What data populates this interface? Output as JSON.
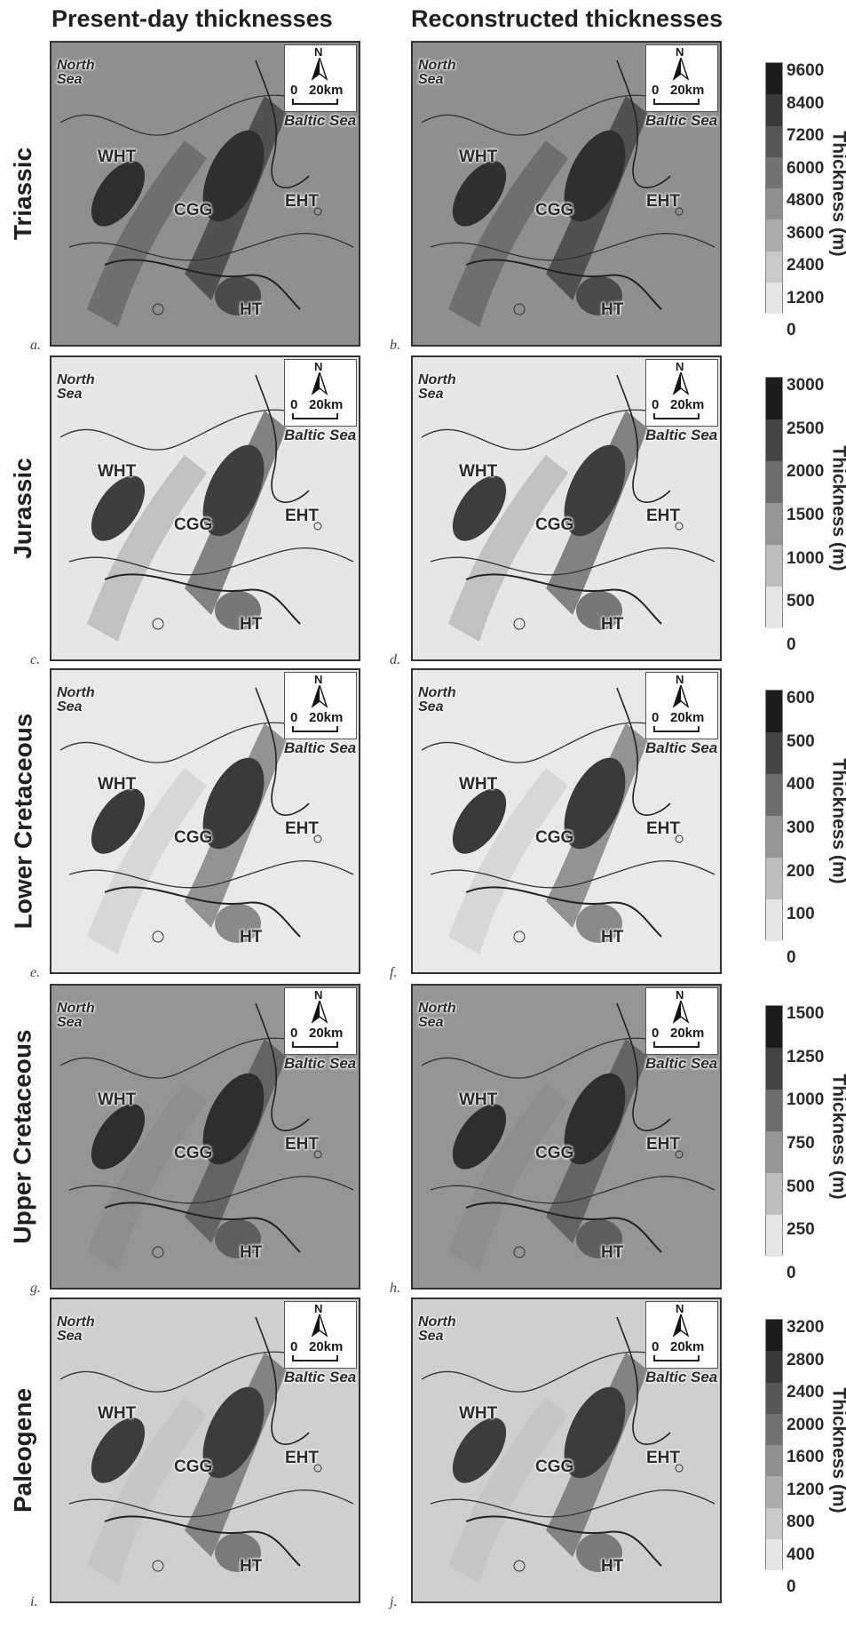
{
  "columns": {
    "left": "Present-day thicknesses",
    "right": "Reconstructed thicknesses"
  },
  "rows": [
    {
      "label": "Triassic",
      "ticks": [
        "9600",
        "8400",
        "7200",
        "6000",
        "4800",
        "3600",
        "2400",
        "1200",
        "0"
      ],
      "axis_title": "Thickness (m)",
      "panels": [
        "a.",
        "b."
      ]
    },
    {
      "label": "Jurassic",
      "ticks": [
        "3000",
        "2500",
        "2000",
        "1500",
        "1000",
        "500",
        "0"
      ],
      "axis_title": "Thickness (m)",
      "panels": [
        "c.",
        "d."
      ]
    },
    {
      "label": "Lower Cretaceous",
      "ticks": [
        "600",
        "500",
        "400",
        "300",
        "200",
        "100",
        "0"
      ],
      "axis_title": "Thickness (m)",
      "panels": [
        "e.",
        "f."
      ]
    },
    {
      "label": "Upper Cretaceous",
      "ticks": [
        "1500",
        "1250",
        "1000",
        "750",
        "500",
        "250",
        "0"
      ],
      "axis_title": "Thickness (m)",
      "panels": [
        "g.",
        "h."
      ]
    },
    {
      "label": "Paleogene",
      "ticks": [
        "3200",
        "2800",
        "2400",
        "2000",
        "1600",
        "1200",
        "800",
        "400",
        "0"
      ],
      "axis_title": "Thickness (m)",
      "panels": [
        "i.",
        "j."
      ]
    }
  ],
  "map_labels": {
    "north_line1": "North",
    "north_line2": "Sea",
    "baltic": "Baltic Sea",
    "wht": "WHT",
    "cgg": "CGG",
    "eht": "EHT",
    "ht": "HT",
    "compass": "N",
    "scale_zero": "0",
    "scale_km": "20km"
  },
  "colors": {
    "map_base": "#c9c9c9",
    "trough_dark": "#3f3f3f",
    "colorbar_top": "#1c1c1c",
    "colorbar_bottom": "#f4f4f4"
  }
}
